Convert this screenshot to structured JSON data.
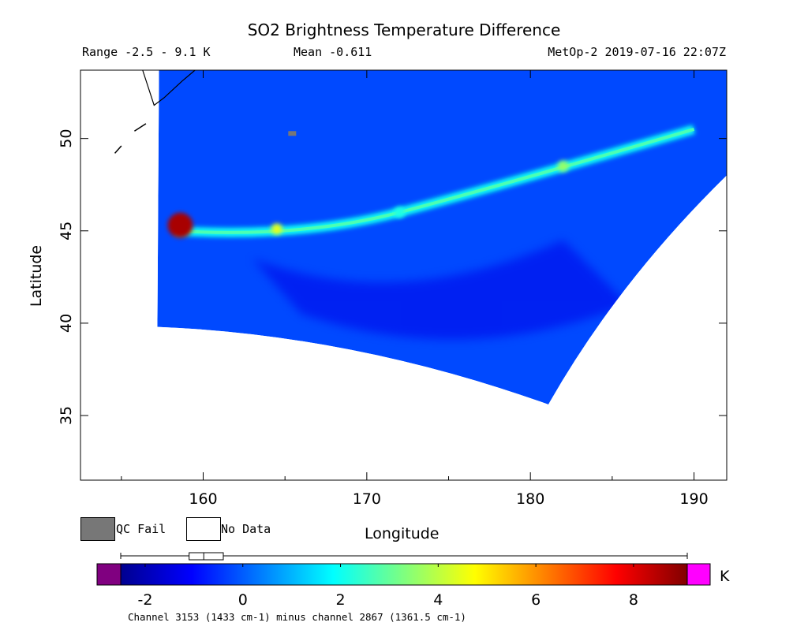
{
  "chart_data": {
    "type": "heatmap",
    "title": "SO2 Brightness Temperature Difference",
    "subtitle_range": "Range -2.5 - 9.1 K",
    "subtitle_mean": "Mean -0.611",
    "subtitle_satellite": "MetOp-2 2019-07-16 22:07Z",
    "xlabel": "Longitude",
    "ylabel": "Latitude",
    "xlim": [
      152.5,
      192
    ],
    "ylim": [
      31.5,
      53.7
    ],
    "x_ticks": [
      160,
      170,
      180,
      190
    ],
    "x_tick_labels": [
      "160",
      "170",
      "180",
      "190"
    ],
    "y_ticks": [
      35,
      40,
      45,
      50
    ],
    "y_tick_labels": [
      "35",
      "40",
      "45",
      "50"
    ],
    "grid": false,
    "swath_corners": {
      "top_left": [
        157.3,
        53.7
      ],
      "bottom_left": [
        157.2,
        39.8
      ],
      "bottom_right": [
        181.1,
        35.6
      ],
      "top_right": [
        192,
        48.0
      ]
    },
    "features": [
      {
        "name": "SO2 plume",
        "lon": 158.6,
        "lat": 45.3,
        "value": 9.1
      },
      {
        "name": "SO2 plume tail",
        "lon": 164.5,
        "lat": 45.1,
        "value": 4.5
      },
      {
        "name": "SO2 plume tail",
        "lon": 172,
        "lat": 46.0,
        "value": 2.0
      },
      {
        "name": "SO2 plume tail",
        "lon": 182,
        "lat": 48.5,
        "value": 3.5
      }
    ],
    "background_value": -0.6,
    "colorbar": {
      "unit": "K",
      "min": -3.1,
      "max": 9.6,
      "ticks": [
        -2,
        0,
        2,
        4,
        6,
        8
      ],
      "tick_labels": [
        "-2",
        "0",
        "2",
        "4",
        "6",
        "8"
      ],
      "box_summary": {
        "whisker_low": -2.5,
        "q1": -1.1,
        "median": -0.8,
        "q3": -0.4,
        "whisker_high": 9.1
      },
      "underflow_color": "#800080",
      "overflow_color": "#ff00ff"
    },
    "legend": [
      {
        "label": "QC Fail",
        "color": "#777777"
      },
      {
        "label": "No Data",
        "color": "#ffffff"
      }
    ],
    "footnote": "Channel 3153 (1433 cm-1) minus channel 2867 (1361.5 cm-1)"
  }
}
